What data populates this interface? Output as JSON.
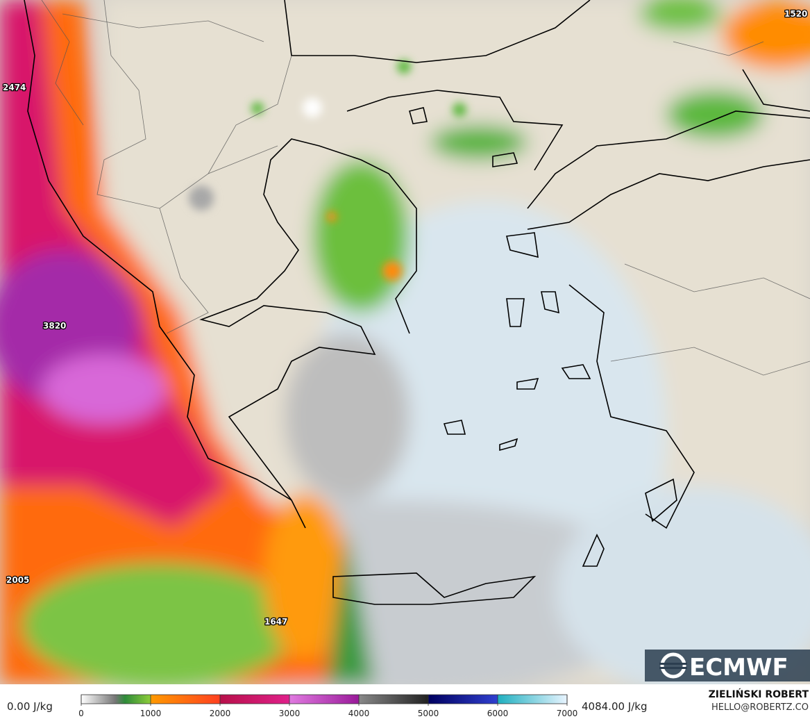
{
  "map_labels": [
    "1520",
    "2474",
    "3820",
    "2005",
    "1647"
  ],
  "logo": "ECMWF",
  "colorbar": {
    "min_label": "0.00 J/kg",
    "max_label": "4084.00 J/kg",
    "ticks": [
      0,
      1000,
      2000,
      3000,
      4000,
      5000,
      6000,
      7000
    ]
  },
  "credit": {
    "name": "ZIELIŃSKI ROBERT",
    "contact": "HELLO@ROBERTZ.CO"
  }
}
